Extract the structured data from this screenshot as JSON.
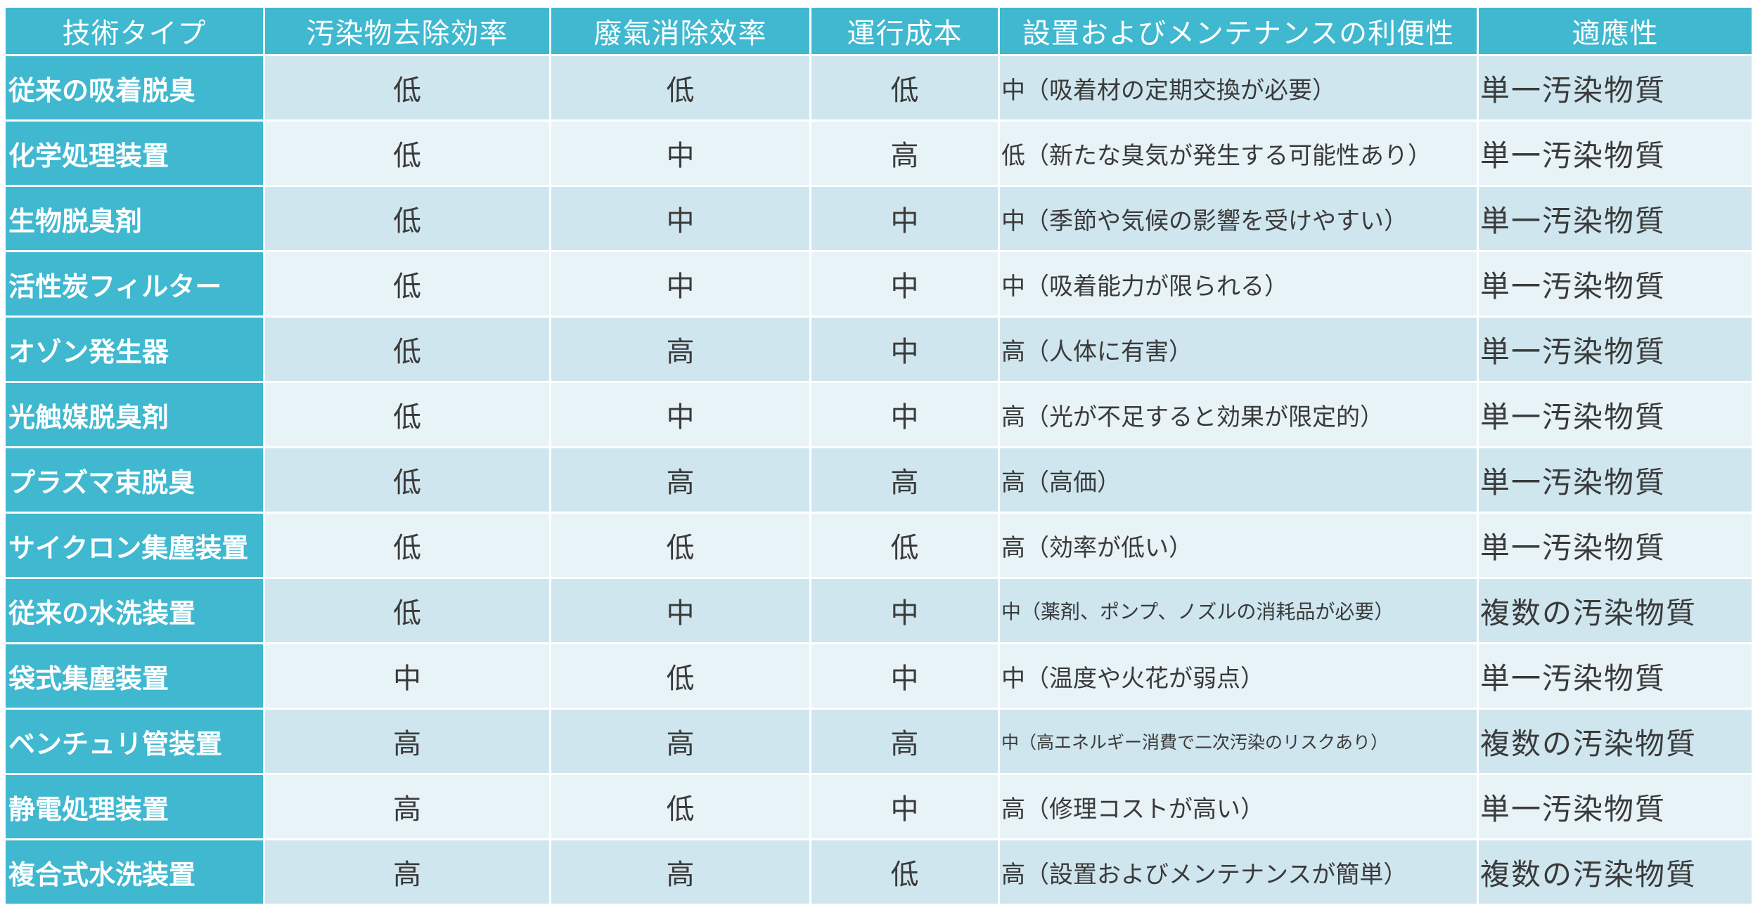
{
  "table": {
    "headers": [
      "技術タイプ",
      "汚染物去除効率",
      "廢氣消除效率",
      "運行成本",
      "設置およびメンテナンスの利便性",
      "適應性"
    ],
    "rows": [
      [
        "従来の吸着脱臭",
        "低",
        "低",
        "低",
        "中（吸着材の定期交換が必要）",
        "単一汚染物質"
      ],
      [
        "化学処理装置",
        "低",
        "中",
        "高",
        "低（新たな臭気が発生する可能性あり）",
        "単一汚染物質"
      ],
      [
        "生物脱臭剤",
        "低",
        "中",
        "中",
        "中（季節や気候の影響を受けやすい）",
        "単一汚染物質"
      ],
      [
        "活性炭フィルター",
        "低",
        "中",
        "中",
        "中（吸着能力が限られる）",
        "単一汚染物質"
      ],
      [
        "オゾン発生器",
        "低",
        "高",
        "中",
        "高（人体に有害）",
        "単一汚染物質"
      ],
      [
        "光触媒脱臭剤",
        "低",
        "中",
        "中",
        "高（光が不足すると効果が限定的）",
        "単一汚染物質"
      ],
      [
        "プラズマ束脱臭",
        "低",
        "高",
        "高",
        "高（高価）",
        "単一汚染物質"
      ],
      [
        "サイクロン集塵装置",
        "低",
        "低",
        "低",
        "高（効率が低い）",
        "単一汚染物質"
      ],
      [
        "従来の水洗装置",
        "低",
        "中",
        "中",
        "中（薬剤、ポンプ、ノズルの消耗品が必要）",
        "複数の汚染物質"
      ],
      [
        "袋式集塵装置",
        "中",
        "低",
        "中",
        "中（温度や火花が弱点）",
        "単一汚染物質"
      ],
      [
        "ベンチュリ管装置",
        "高",
        "高",
        "高",
        "中（高エネルギー消費で二次汚染のリスクあり）",
        "複数の汚染物質"
      ],
      [
        "静電処理装置",
        "高",
        "低",
        "中",
        "高（修理コストが高い）",
        "単一汚染物質"
      ],
      [
        "複合式水洗装置",
        "高",
        "高",
        "低",
        "高（設置およびメンテナンスが簡単）",
        "複数の汚染物質"
      ]
    ]
  },
  "colors": {
    "header_bg": "#3fb8d0",
    "header_text": "#ffffff",
    "row_odd_bg": "#cfe6ee",
    "row_even_bg": "#e7f3f7"
  }
}
